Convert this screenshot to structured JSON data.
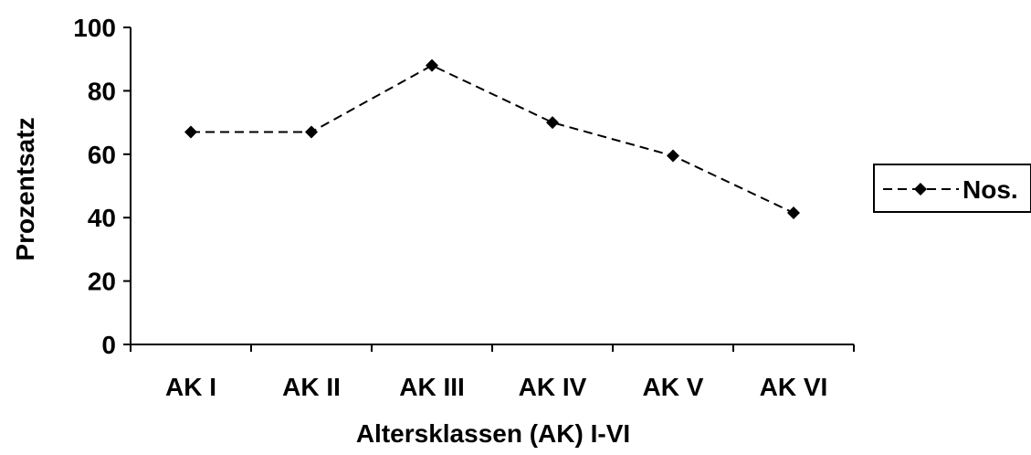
{
  "chart_data": {
    "type": "line",
    "categories": [
      "AK I",
      "AK II",
      "AK III",
      "AK IV",
      "AK V",
      "AK VI"
    ],
    "series": [
      {
        "name": "Nos.",
        "values": [
          67,
          67,
          88,
          70,
          59.5,
          41.5
        ],
        "color": "#000000",
        "line_style": "dashed",
        "marker": "diamond"
      }
    ],
    "title": "",
    "xlabel": "Altersklassen (AK) I-VI",
    "ylabel": "Prozentsatz",
    "ylim": [
      0,
      100
    ],
    "yticks": [
      0,
      20,
      40,
      60,
      80,
      100
    ],
    "grid": false,
    "legend_position": "right"
  }
}
